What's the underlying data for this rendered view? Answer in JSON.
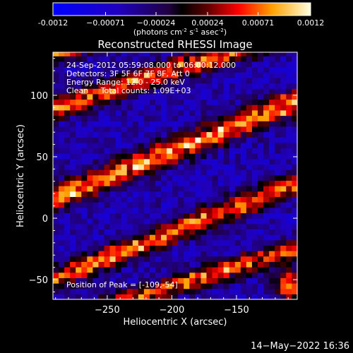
{
  "chart_data": {
    "type": "heatmap",
    "title": "Reconstructed RHESSI Image",
    "xlabel": "Heliocentric X (arcsec)",
    "ylabel": "Heliocentric Y (arcsec)",
    "xlim": [
      -292,
      -103
    ],
    "ylim": [
      -66,
      135
    ],
    "x_ticks": [
      -250,
      -200,
      -150
    ],
    "y_ticks": [
      -50,
      0,
      50,
      100
    ],
    "colorbar": {
      "range": [
        -0.0012,
        0.0012
      ],
      "tick_values": [
        -0.0012,
        -0.00071,
        -0.00024,
        0.00024,
        0.00071,
        0.0012
      ],
      "tick_labels": [
        "-0.0012",
        "−0.00071",
        "−0.00024",
        "0.00024",
        "0.00071",
        "0.0012"
      ],
      "unit_main": "(photons cm",
      "unit_exp1": "-2",
      "unit_mid": " s",
      "unit_exp2": "-1",
      "unit_mid2": " asec",
      "unit_exp3": "-2",
      "unit_close": ")"
    },
    "annotations": {
      "line1": "24-Sep-2012 05:59:08.000 to 06:00:12.000",
      "line2": "Detectors: 3F 5F 6F 7F 8F, Att 0",
      "line3": "Energy Range: 12.0 - 25.0 keV",
      "line4": "Clean     Total counts: 1.09E+03",
      "peak": "Position of Peak = [-109,-54]"
    },
    "bands": [
      {
        "y_at_x_min": 138,
        "slope": 0.33,
        "amplitude": 1.0,
        "width": 11
      },
      {
        "y_at_x_min": 90,
        "slope": 0.33,
        "amplitude": 0.75,
        "width": 10
      },
      {
        "y_at_x_min": 16,
        "slope": 0.42,
        "amplitude": 0.85,
        "width": 11
      },
      {
        "y_at_x_min": -50,
        "slope": 0.42,
        "amplitude": 0.75,
        "width": 10
      },
      {
        "y_at_x_min": -86,
        "slope": 0.33,
        "amplitude": 0.7,
        "width": 9
      }
    ],
    "peak_position": [
      -109,
      -54
    ],
    "background_level": -0.45
  },
  "timestamp": "14−May−2022 16:36",
  "colors": {
    "background": "#000000",
    "text": "#ffffff"
  }
}
